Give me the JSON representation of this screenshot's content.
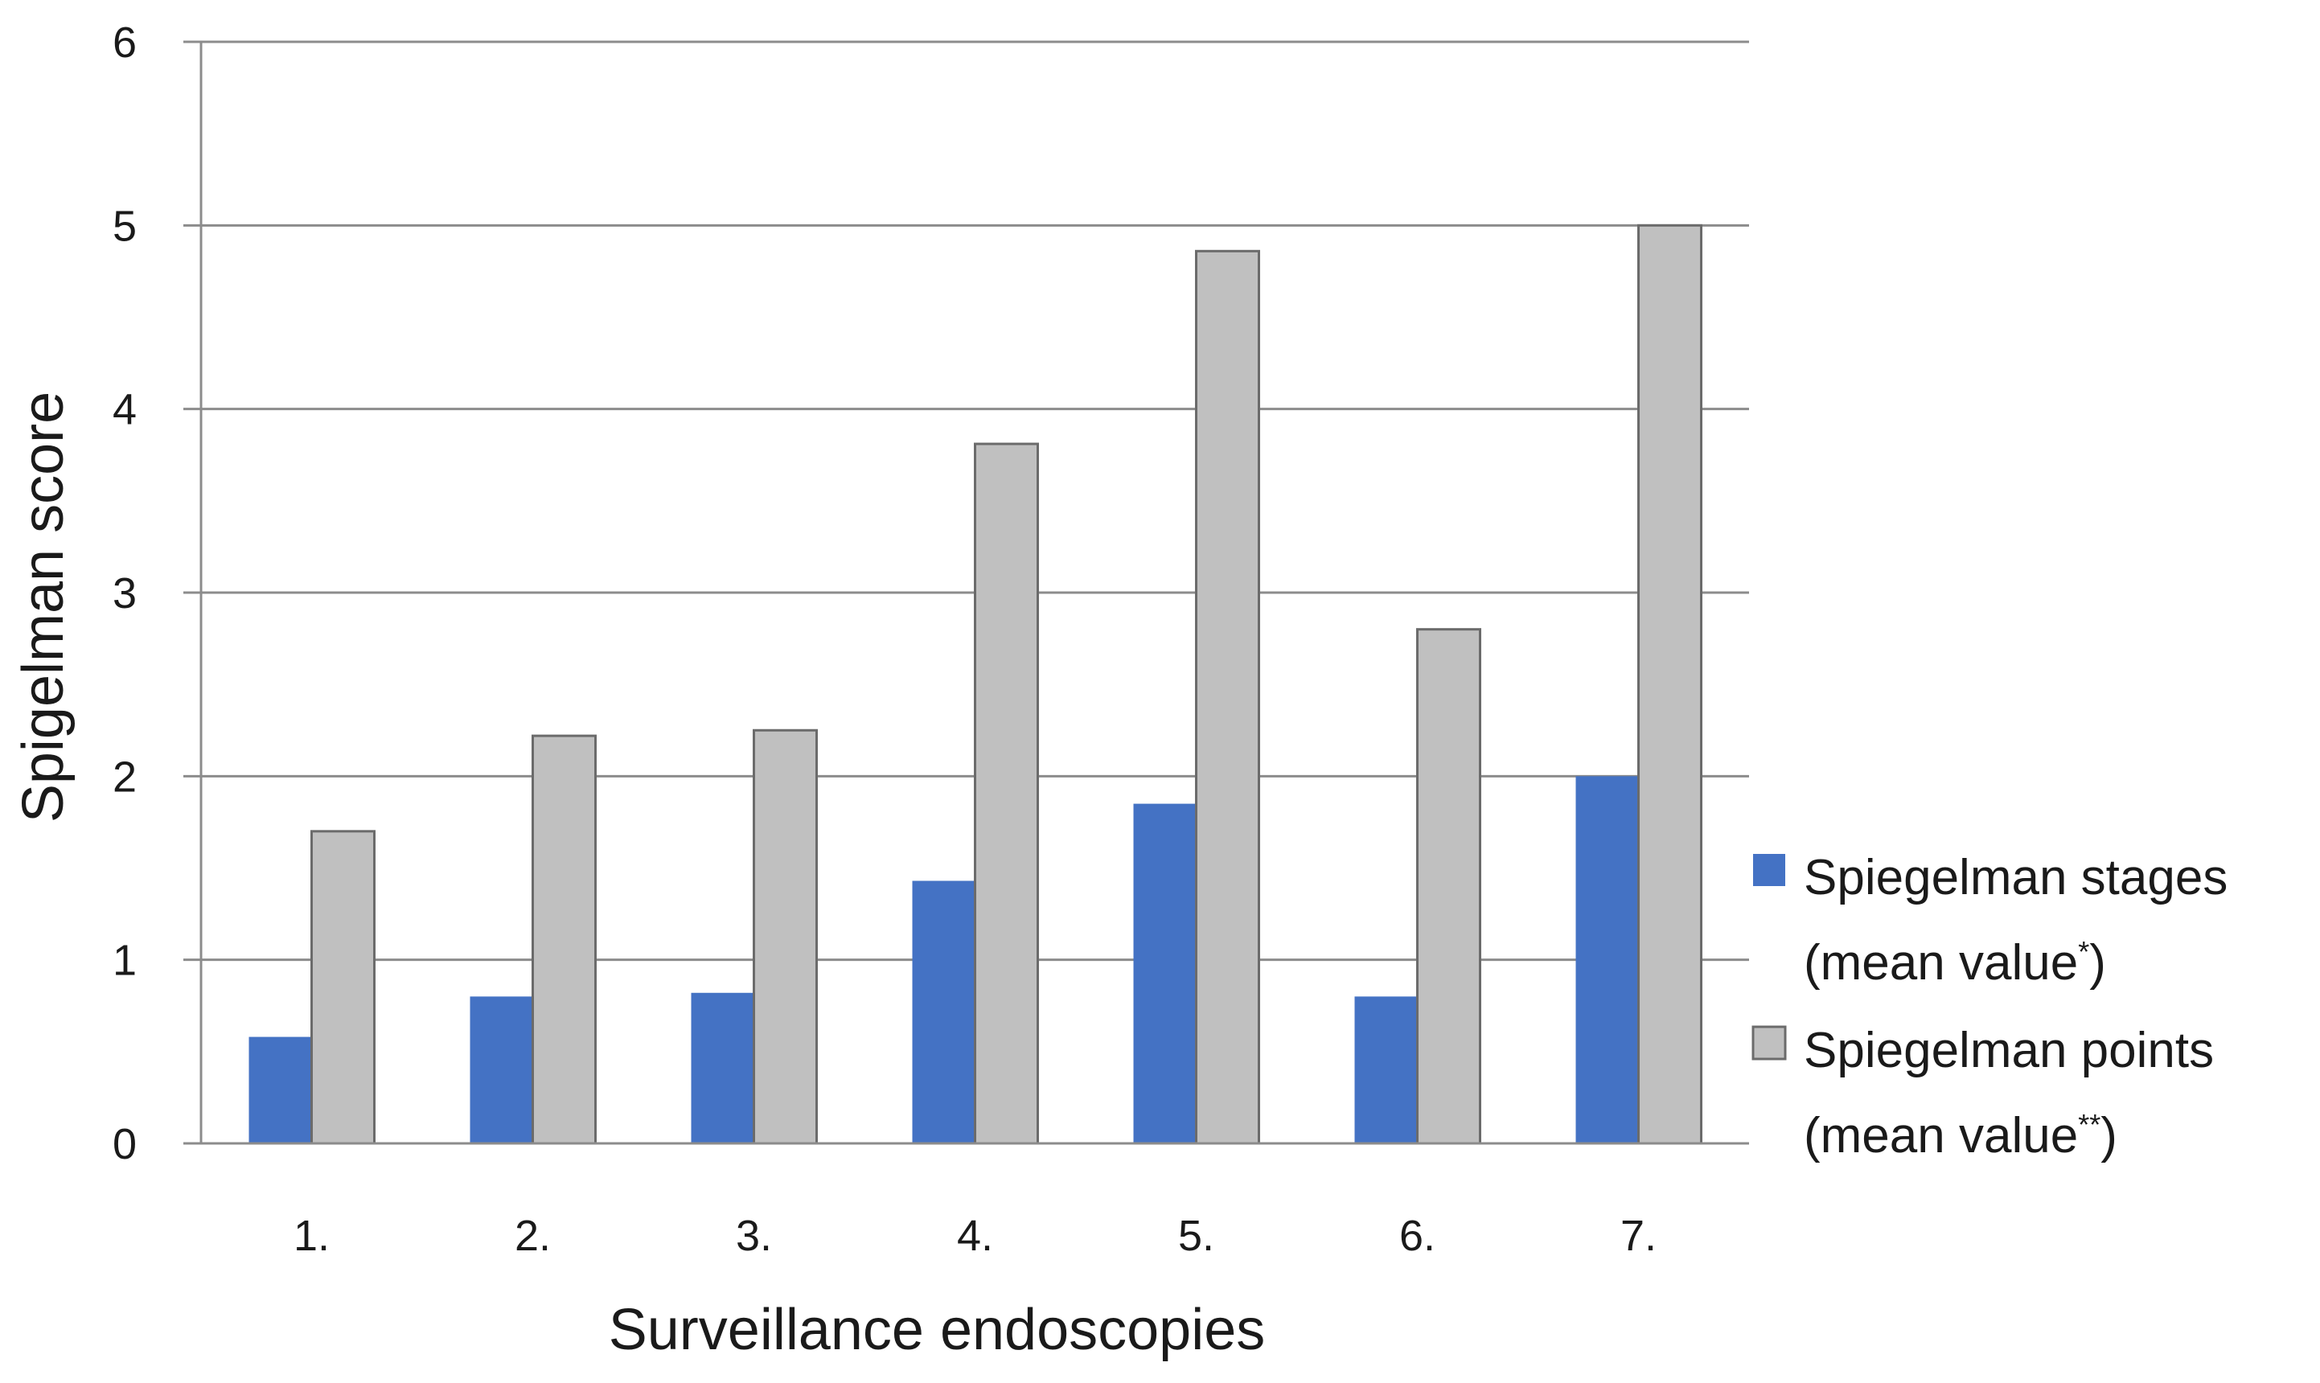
{
  "chart_data": {
    "type": "bar",
    "title": "",
    "xlabel": "Surveillance endoscopies",
    "ylabel": "Spigelman score",
    "categories": [
      "1.",
      "2.",
      "3.",
      "4.",
      "5.",
      "6.",
      "7."
    ],
    "ylim": [
      0,
      6
    ],
    "yticks": [
      "0",
      "1",
      "2",
      "3",
      "4",
      "5",
      "6"
    ],
    "grid": true,
    "legend_position": "right",
    "series": [
      {
        "name_line1": "Spiegelman stages",
        "name_line2": "(mean value",
        "name_mark": "*",
        "name_close": ")",
        "color": "#4472C4",
        "values": [
          0.58,
          0.8,
          0.82,
          1.43,
          1.85,
          0.8,
          2.0
        ]
      },
      {
        "name_line1": "Spiegelman points",
        "name_line2": "(mean value",
        "name_mark": "**",
        "name_close": ")",
        "color": "#C0C0C0",
        "values": [
          1.7,
          2.22,
          2.25,
          3.81,
          4.86,
          2.8,
          5.0
        ]
      }
    ]
  }
}
